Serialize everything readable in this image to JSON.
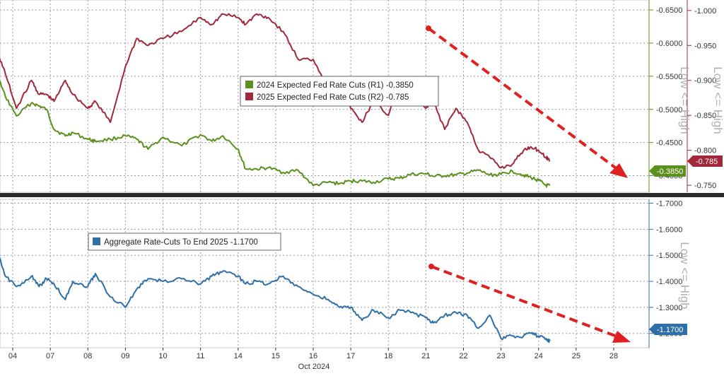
{
  "chart_data": [
    {
      "type": "line",
      "panel": "top",
      "title": "",
      "legend": {
        "placement": "center",
        "entries": [
          {
            "label": "2024 Expected Fed Rate Cuts (R1) -0.3850",
            "color": "#5b8f1e"
          },
          {
            "label": "2025 Expected Fed Rate Cuts (R2) -0.785",
            "color": "#a0283a"
          }
        ]
      },
      "annotation_r1": "Low <= High",
      "annotation_r2": "Low <= High",
      "axes": {
        "r1": {
          "ticks": [
            "-0.6500",
            "-0.6000",
            "-0.5500",
            "-0.5000",
            "-0.4500",
            "-0.4000"
          ],
          "ylim": [
            -0.375,
            -0.665
          ]
        },
        "r2": {
          "ticks": [
            "-1.000",
            "-0.950",
            "-0.900",
            "-0.850",
            "-0.800",
            "-0.750"
          ],
          "ylim": [
            -0.74,
            -1.015
          ]
        }
      },
      "last_labels": {
        "r1": "-0.3850",
        "r2": "-0.785"
      },
      "series": [
        {
          "name": "2024 Expected Fed Rate Cuts (R1)",
          "axis": "r1",
          "color": "#5b8f1e",
          "x": [
            0,
            0.4,
            0.6,
            0.8,
            1.1,
            1.5,
            1.7,
            1.9,
            2.1,
            2.4,
            2.6,
            3.0,
            3.2,
            3.6,
            4.0,
            4.3,
            4.6,
            5.0,
            5.5,
            6.0,
            6.3,
            6.6,
            7.0,
            7.2,
            7.5,
            7.8,
            8.2,
            8.6,
            9.0,
            9.4,
            9.7,
            10.0,
            10.3,
            10.6,
            11.0,
            11.3,
            11.6,
            12.0,
            12.2,
            12.5,
            12.8,
            13.1,
            13.4,
            13.7,
            14.0,
            14.3,
            14.6,
            14.8,
            15.0,
            15.2,
            15.3
          ],
          "values": [
            -0.662,
            -0.662,
            -0.55,
            -0.52,
            -0.49,
            -0.51,
            -0.505,
            -0.5,
            -0.47,
            -0.46,
            -0.465,
            -0.455,
            -0.452,
            -0.455,
            -0.46,
            -0.455,
            -0.44,
            -0.458,
            -0.445,
            -0.462,
            -0.452,
            -0.46,
            -0.44,
            -0.41,
            -0.41,
            -0.412,
            -0.405,
            -0.408,
            -0.385,
            -0.39,
            -0.388,
            -0.392,
            -0.392,
            -0.39,
            -0.395,
            -0.396,
            -0.402,
            -0.403,
            -0.399,
            -0.4,
            -0.401,
            -0.404,
            -0.408,
            -0.401,
            -0.402,
            -0.407,
            -0.401,
            -0.397,
            -0.393,
            -0.385,
            -0.385
          ]
        },
        {
          "name": "2025 Expected Fed Rate Cuts (R2)",
          "axis": "r2",
          "color": "#a0283a",
          "x": [
            0,
            0.4,
            0.6,
            0.8,
            1.1,
            1.5,
            1.7,
            1.9,
            2.1,
            2.4,
            2.6,
            3.0,
            3.2,
            3.6,
            4.0,
            4.3,
            4.6,
            5.0,
            5.5,
            6.0,
            6.3,
            6.6,
            7.0,
            7.2,
            7.5,
            7.8,
            8.2,
            8.6,
            9.0,
            9.4,
            9.7,
            10.0,
            10.3,
            10.6,
            11.0,
            11.3,
            11.6,
            12.0,
            12.2,
            12.5,
            12.8,
            13.1,
            13.4,
            13.7,
            14.0,
            14.3,
            14.6,
            14.8,
            15.0,
            15.2,
            15.3
          ],
          "values": [
            -1.01,
            -1.01,
            -0.94,
            -0.91,
            -0.86,
            -0.9,
            -0.88,
            -0.88,
            -0.87,
            -0.9,
            -0.88,
            -0.86,
            -0.87,
            -0.84,
            -0.92,
            -0.96,
            -0.95,
            -0.96,
            -0.97,
            -0.99,
            -0.98,
            -0.995,
            -0.99,
            -0.98,
            -0.995,
            -0.99,
            -0.97,
            -0.93,
            -0.93,
            -0.89,
            -0.9,
            -0.86,
            -0.84,
            -0.87,
            -0.85,
            -0.9,
            -0.88,
            -0.86,
            -0.87,
            -0.83,
            -0.86,
            -0.84,
            -0.8,
            -0.79,
            -0.775,
            -0.78,
            -0.8,
            -0.805,
            -0.8,
            -0.79,
            -0.785
          ]
        }
      ]
    },
    {
      "type": "line",
      "panel": "bottom",
      "title": "",
      "legend": {
        "placement": "top-left",
        "entries": [
          {
            "label": "Aggregate Rate-Cuts To End 2025 -1.1700",
            "color": "#2f6fa8"
          }
        ]
      },
      "annotation": "Low <= High",
      "axes": {
        "y": {
          "ticks": [
            "-1.7000",
            "-1.6000",
            "-1.5000",
            "-1.4000",
            "-1.3000",
            "-1.2000"
          ],
          "ylim": [
            -1.145,
            -1.715
          ]
        }
      },
      "last_label": "-1.1700",
      "xlabel": "Oct 2024",
      "x_ticks": [
        "04",
        "07",
        "08",
        "09",
        "10",
        "11",
        "14",
        "15",
        "16",
        "17",
        "18",
        "21",
        "22",
        "23",
        "24",
        "25",
        "28"
      ],
      "series": [
        {
          "name": "Aggregate Rate-Cuts To End 2025",
          "color": "#2f6fa8",
          "x": [
            0,
            0.4,
            0.6,
            0.8,
            1.1,
            1.5,
            1.7,
            1.9,
            2.1,
            2.4,
            2.6,
            3.0,
            3.2,
            3.6,
            4.0,
            4.3,
            4.6,
            5.0,
            5.5,
            6.0,
            6.3,
            6.6,
            7.0,
            7.2,
            7.5,
            7.8,
            8.2,
            8.6,
            9.0,
            9.4,
            9.7,
            10.0,
            10.3,
            10.6,
            11.0,
            11.3,
            11.6,
            12.0,
            12.2,
            12.5,
            12.8,
            13.1,
            13.4,
            13.7,
            14.0,
            14.3,
            14.6,
            14.8,
            15.0,
            15.2,
            15.3
          ],
          "values": [
            -1.67,
            -1.67,
            -1.51,
            -1.42,
            -1.38,
            -1.42,
            -1.38,
            -1.41,
            -1.39,
            -1.33,
            -1.4,
            -1.38,
            -1.43,
            -1.34,
            -1.3,
            -1.37,
            -1.41,
            -1.4,
            -1.41,
            -1.39,
            -1.42,
            -1.44,
            -1.42,
            -1.39,
            -1.4,
            -1.39,
            -1.42,
            -1.38,
            -1.35,
            -1.33,
            -1.3,
            -1.3,
            -1.25,
            -1.29,
            -1.26,
            -1.29,
            -1.28,
            -1.26,
            -1.24,
            -1.27,
            -1.28,
            -1.27,
            -1.22,
            -1.27,
            -1.18,
            -1.19,
            -1.19,
            -1.2,
            -1.19,
            -1.18,
            -1.17
          ]
        }
      ]
    }
  ]
}
